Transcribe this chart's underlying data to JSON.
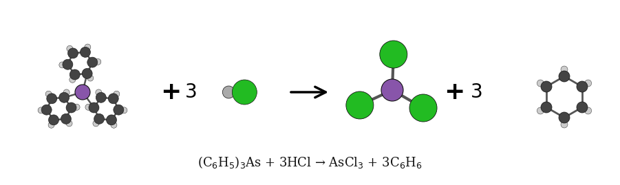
{
  "fig_width": 9.01,
  "fig_height": 2.69,
  "dpi": 100,
  "bg_color": "#ffffff",
  "equation_text": "(C$_6$H$_5$)$_3$As + 3HCl → AsCl$_3$ + 3C$_6$H$_6$",
  "equation_fontsize": 13,
  "as_color": "#8855aa",
  "cl_color": "#22bb22",
  "c_color": "#444444",
  "h_color": "#cccccc",
  "bond_color": "#555555",
  "atom_edge_color": "#111111",
  "plus_fontsize": 26,
  "three_fontsize": 20,
  "eq_color": "#111111"
}
